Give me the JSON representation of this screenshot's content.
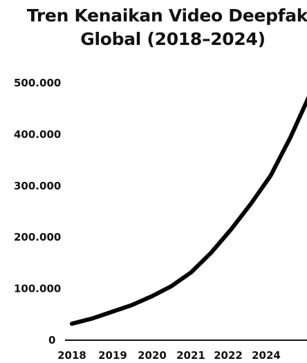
{
  "chart_data": {
    "type": "line",
    "title": [
      "Tren Kenaikan Video Deepfake",
      "Global (2018–2024)"
    ],
    "xlabel": "",
    "ylabel": "",
    "x_tick_labels": [
      "2018",
      "2019",
      "2020",
      "2021",
      "2022",
      "2024"
    ],
    "y_tick_labels": [
      "0",
      "100.000",
      "200.000",
      "300.000",
      "400.000",
      "500.000"
    ],
    "y_ticks": [
      0,
      100000,
      200000,
      300000,
      400000,
      500000
    ],
    "ylim": [
      0,
      500000
    ],
    "grid": false,
    "legend": "none",
    "series": [
      {
        "x": [
          2018,
          2018.5,
          2019,
          2019.5,
          2020,
          2020.5,
          2021,
          2021.5,
          2022,
          2022.5,
          2023,
          2023.5,
          2024
        ],
        "values": [
          32000,
          42000,
          55000,
          68000,
          85000,
          105000,
          132000,
          170000,
          215000,
          265000,
          320000,
          395000,
          480000
        ],
        "color": "#000000"
      }
    ]
  }
}
